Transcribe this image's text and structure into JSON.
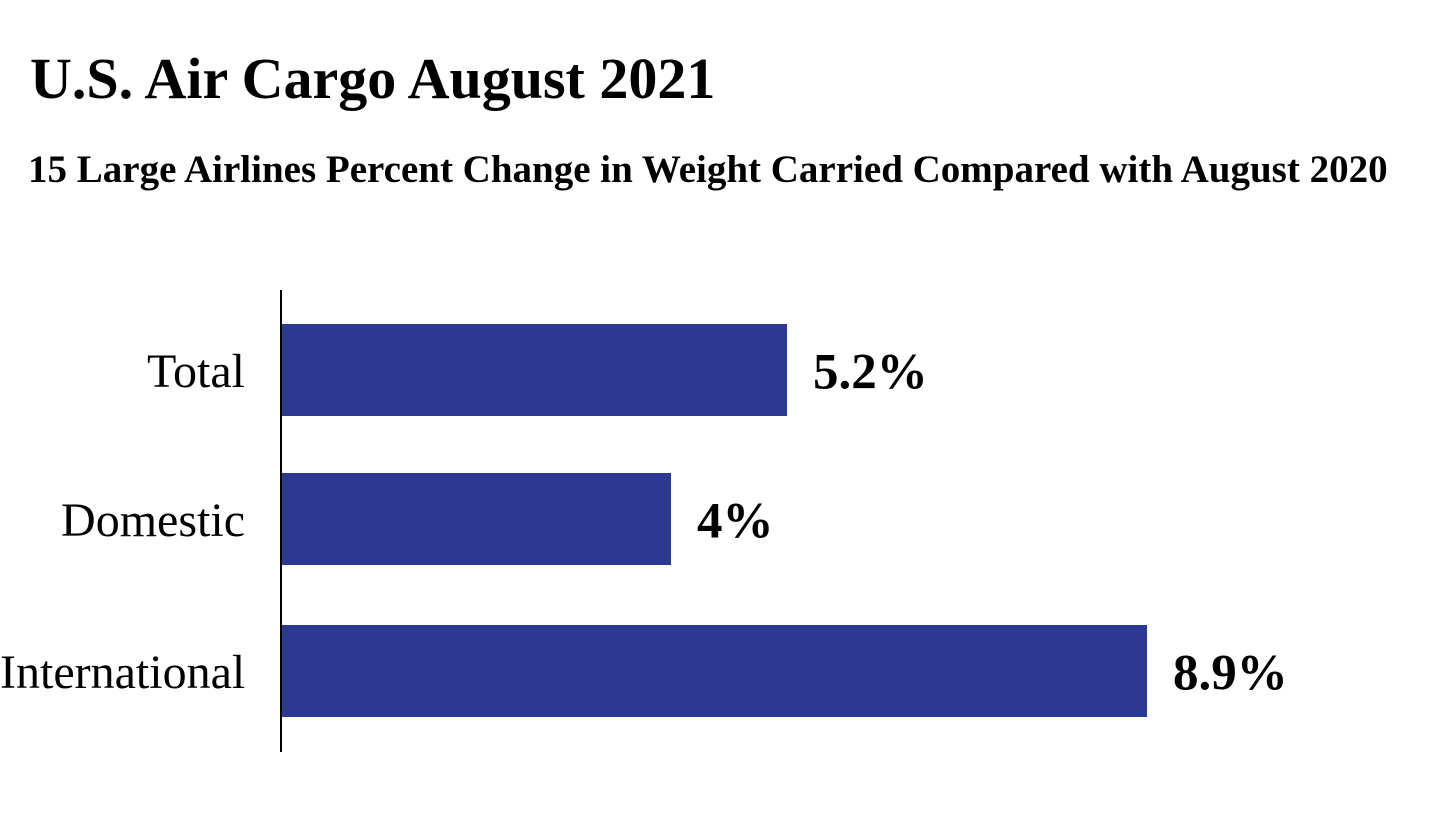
{
  "title": "U.S. Air Cargo August 2021",
  "subtitle": "15 Large Airlines Percent Change in Weight Carried Compared with August 2020",
  "colors": {
    "bar": "#2B3990",
    "axis": "#000000",
    "text": "#000000",
    "background": "#FFFFFF"
  },
  "chart_data": {
    "type": "bar",
    "orientation": "horizontal",
    "title": "U.S. Air Cargo August 2021",
    "subtitle": "15 Large Airlines Percent Change in Weight Carried Compared with August 2020",
    "categories": [
      "Total",
      "Domestic",
      "International"
    ],
    "values": [
      5.2,
      4,
      8.9
    ],
    "value_labels": [
      "5.2%",
      "4%",
      "8.9%"
    ],
    "value_suffix": "%",
    "xlim": [
      0,
      12
    ],
    "grid": false,
    "legend": false,
    "bar_color": "#2B3990",
    "axis_color": "#000000"
  }
}
